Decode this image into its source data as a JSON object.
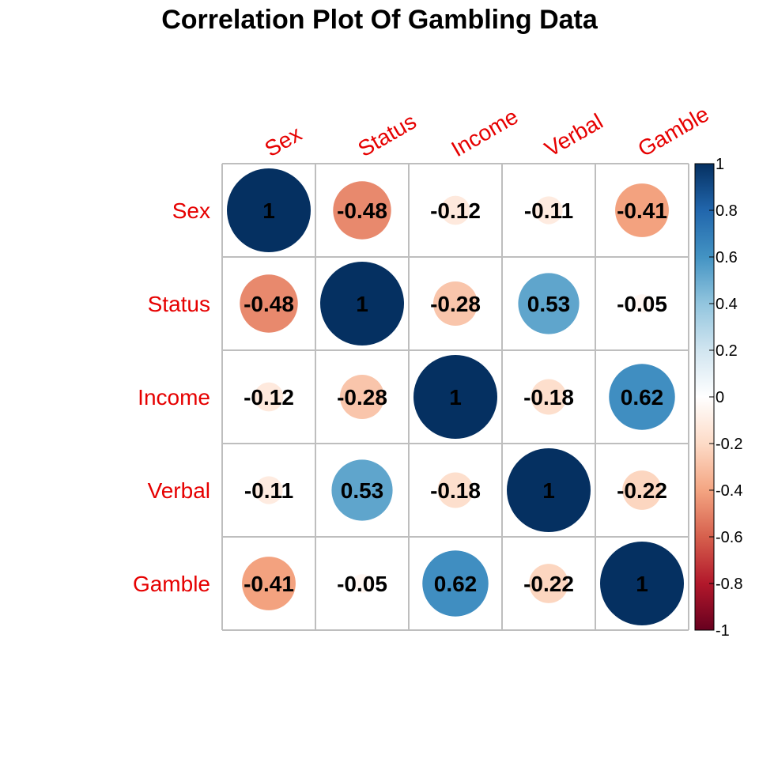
{
  "chart_data": {
    "type": "heatmap",
    "title": "Correlation Plot Of Gambling Data",
    "variables": [
      "Sex",
      "Status",
      "Income",
      "Verbal",
      "Gamble"
    ],
    "matrix": [
      [
        1,
        -0.48,
        -0.12,
        -0.11,
        -0.41
      ],
      [
        -0.48,
        1,
        -0.28,
        0.53,
        -0.05
      ],
      [
        -0.12,
        -0.28,
        1,
        -0.18,
        0.62
      ],
      [
        -0.11,
        0.53,
        -0.18,
        1,
        -0.22
      ],
      [
        -0.41,
        -0.05,
        0.62,
        -0.22,
        1
      ]
    ],
    "value_labels": [
      [
        "1",
        "-0.48",
        "-0.12",
        "-0.11",
        "-0.41"
      ],
      [
        "-0.48",
        "1",
        "-0.28",
        "0.53",
        "-0.05"
      ],
      [
        "-0.12",
        "-0.28",
        "1",
        "-0.18",
        "0.62"
      ],
      [
        "-0.11",
        "0.53",
        "-0.18",
        "1",
        "-0.22"
      ],
      [
        "-0.41",
        "-0.05",
        "0.62",
        "-0.22",
        "1"
      ]
    ],
    "legend": {
      "range": [
        -1,
        1
      ],
      "ticks": [
        "1",
        "0.8",
        "0.6",
        "0.4",
        "0.2",
        "0",
        "-0.2",
        "-0.4",
        "-0.6",
        "-0.8",
        "-1"
      ],
      "placement": "right"
    },
    "label_color": "#e60000",
    "grid_color": "#bebebe",
    "colors": [
      "#67001f",
      "#b2182b",
      "#d6604d",
      "#f4a582",
      "#fddbc7",
      "#ffffff",
      "#d1e5f0",
      "#92c5de",
      "#4393c3",
      "#2166ac",
      "#053061"
    ]
  }
}
